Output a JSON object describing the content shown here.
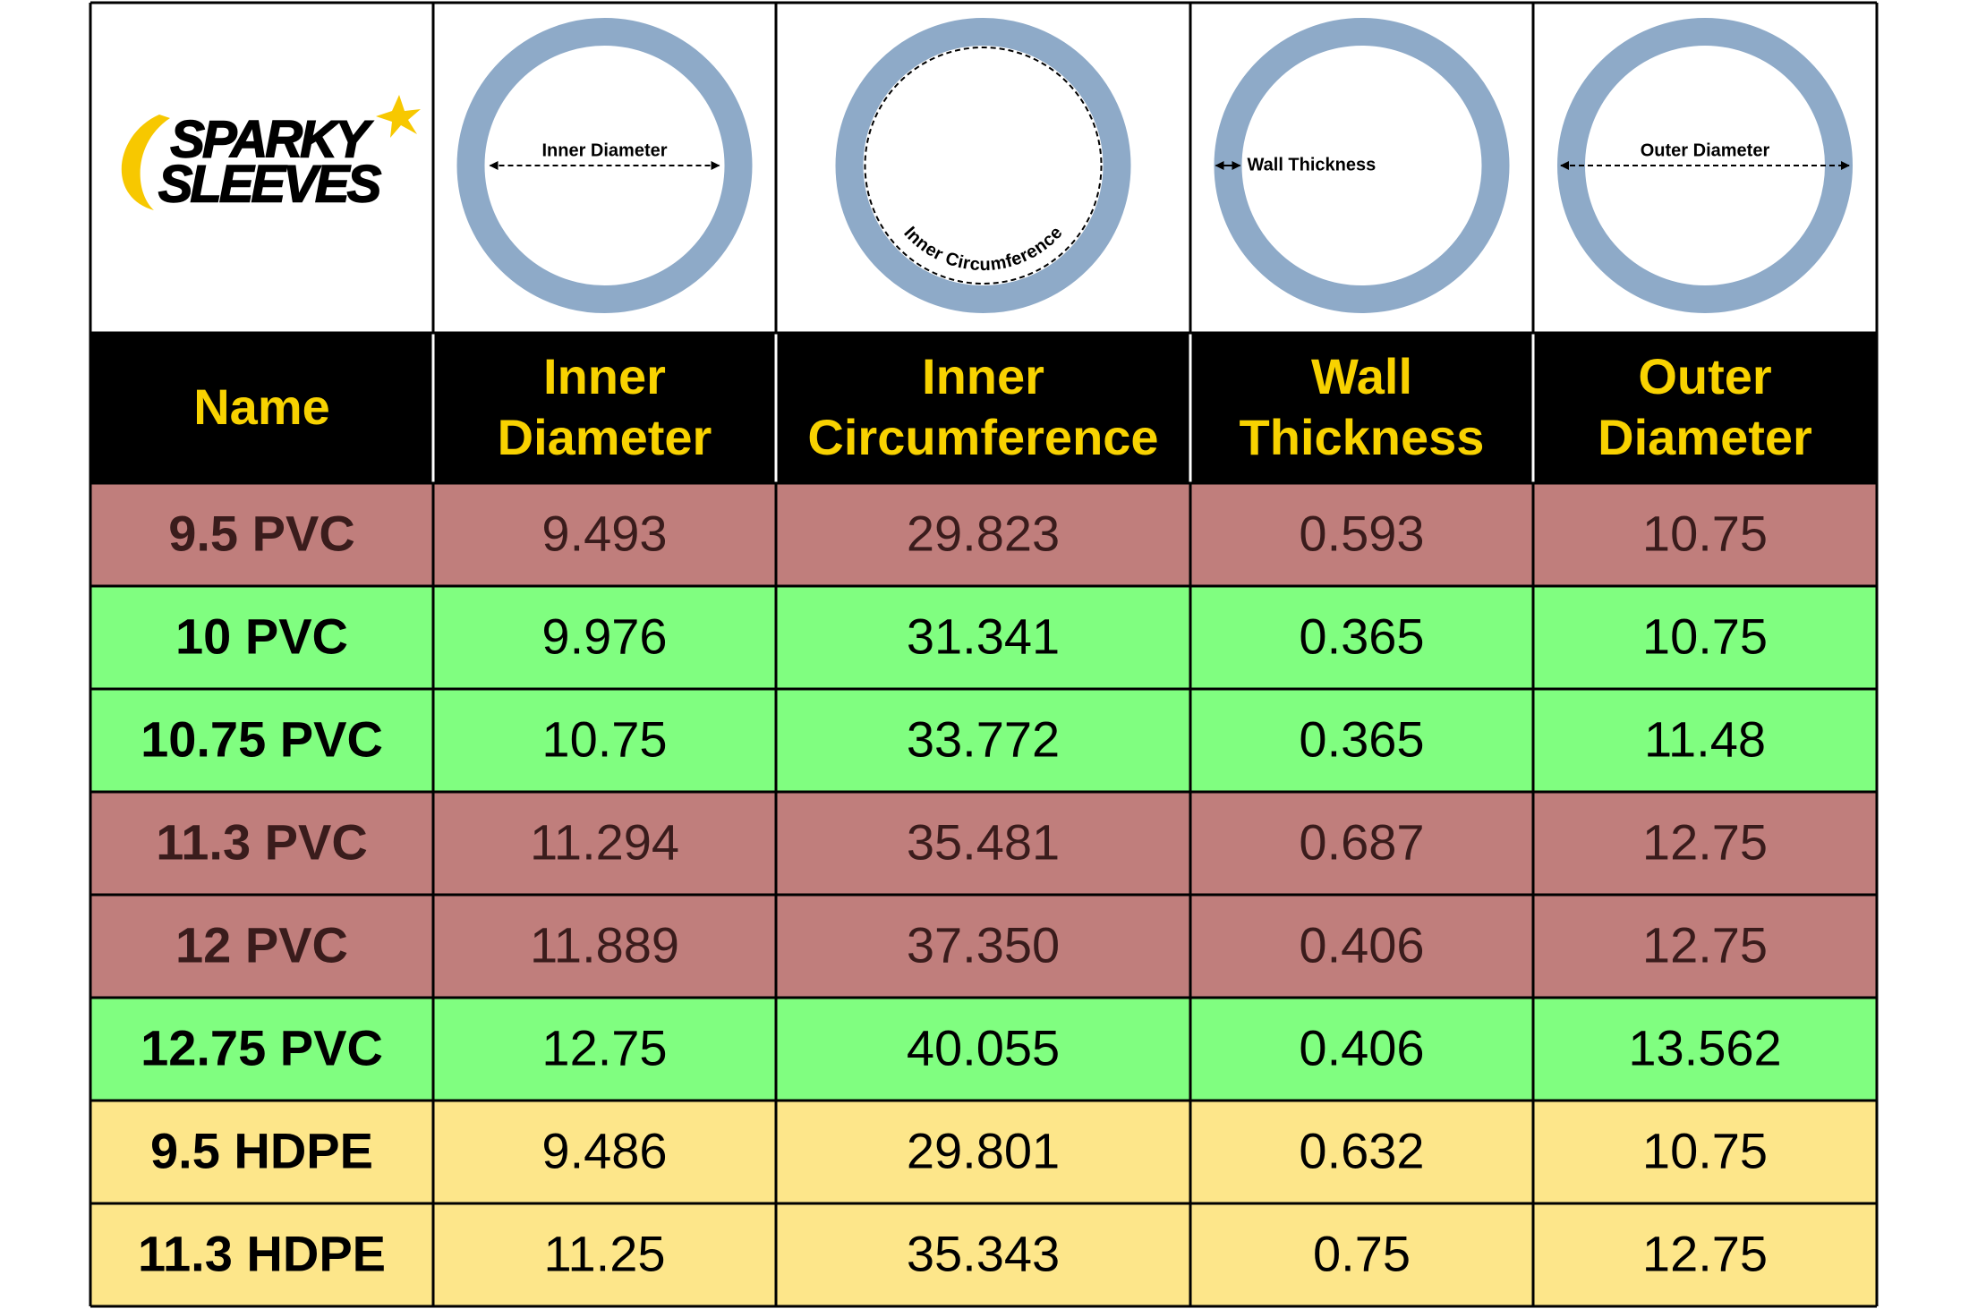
{
  "logo": {
    "line1": "SPARKY",
    "line2": "SLEEVES"
  },
  "diagrams": [
    {
      "label": "Inner Diameter"
    },
    {
      "label": "Inner Circumference"
    },
    {
      "label": "Wall Thickness"
    },
    {
      "label": "Outer Diameter"
    }
  ],
  "table": {
    "header": [
      [
        "Name"
      ],
      [
        "Inner",
        "Diameter"
      ],
      [
        "Inner",
        "Circumference"
      ],
      [
        "Wall",
        "Thickness"
      ],
      [
        "Outer",
        "Diameter"
      ]
    ],
    "rows": [
      {
        "color": "#c07e7c",
        "cells": [
          "9.5 PVC",
          "9.493",
          "29.823",
          "0.593",
          "10.75"
        ]
      },
      {
        "color": "#80fe80",
        "cells": [
          "10 PVC",
          "9.976",
          "31.341",
          "0.365",
          "10.75"
        ]
      },
      {
        "color": "#80fe80",
        "cells": [
          "10.75 PVC",
          "10.75",
          "33.772",
          "0.365",
          "11.48"
        ]
      },
      {
        "color": "#c07e7c",
        "cells": [
          "11.3 PVC",
          "11.294",
          "35.481",
          "0.687",
          "12.75"
        ]
      },
      {
        "color": "#c07e7c",
        "cells": [
          "12 PVC",
          "11.889",
          "37.350",
          "0.406",
          "12.75"
        ]
      },
      {
        "color": "#80fe80",
        "cells": [
          "12.75 PVC",
          "12.75",
          "40.055",
          "0.406",
          "13.562"
        ]
      },
      {
        "color": "#fde68a",
        "cells": [
          "9.5 HDPE",
          "9.486",
          "29.801",
          "0.632",
          "10.75"
        ]
      },
      {
        "color": "#fde68a",
        "cells": [
          "11.3 HDPE",
          "11.25",
          "35.343",
          "0.75",
          "12.75"
        ]
      }
    ]
  }
}
